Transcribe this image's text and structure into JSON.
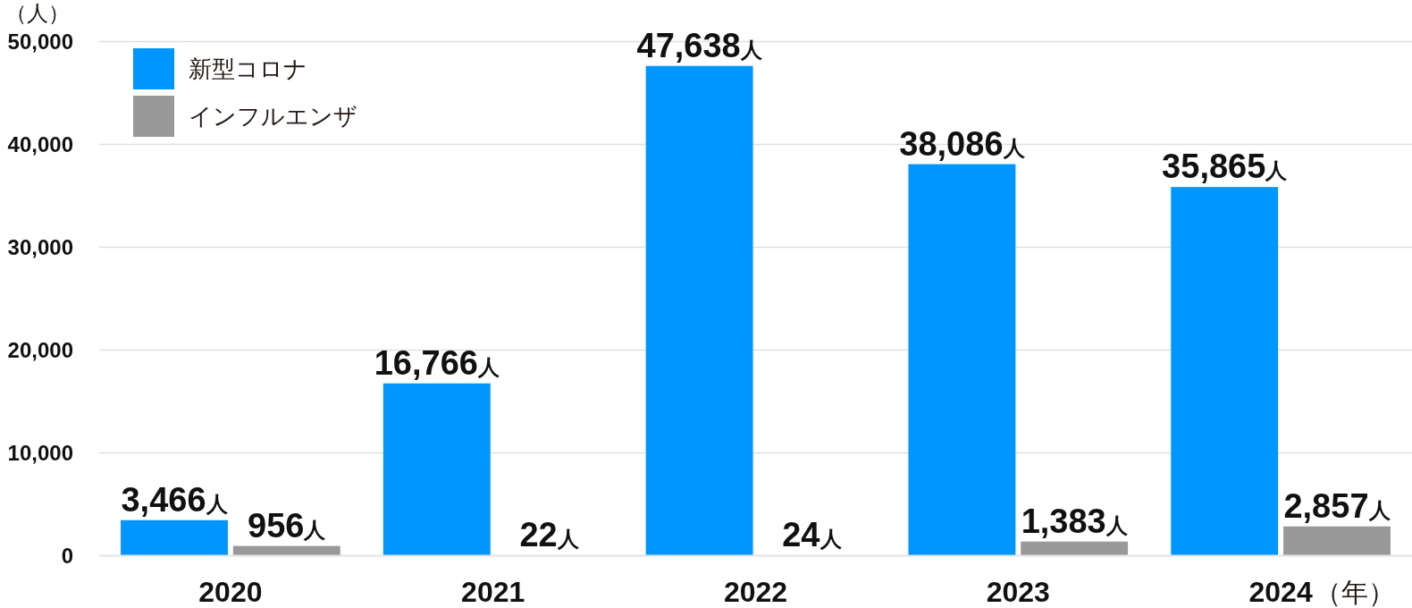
{
  "chart_data": {
    "type": "bar",
    "categories": [
      "2020",
      "2021",
      "2022",
      "2023",
      "2024"
    ],
    "series": [
      {
        "name": "新型コロナ",
        "color": "#0096ff",
        "values": [
          3466,
          16766,
          47638,
          38086,
          35865
        ],
        "value_labels": [
          "3,466人",
          "16,766人",
          "47,638人",
          "38,086人",
          "35,865人"
        ]
      },
      {
        "name": "インフルエンザ",
        "color": "#999999",
        "values": [
          956,
          22,
          24,
          1383,
          2857
        ],
        "value_labels": [
          "956人",
          "22人",
          "24人",
          "1,383人",
          "2,857人"
        ]
      }
    ],
    "ylim": [
      0,
      50000
    ],
    "yticks": [
      {
        "value": 0,
        "label": "0"
      },
      {
        "value": 10000,
        "label": "10,000"
      },
      {
        "value": 20000,
        "label": "20,000"
      },
      {
        "value": 30000,
        "label": "30,000"
      },
      {
        "value": 40000,
        "label": "40,000"
      },
      {
        "value": 50000,
        "label": "50,000"
      }
    ],
    "ylabel": "（人）",
    "xlabel": "（年）",
    "grid": "y",
    "legend": "top left"
  }
}
